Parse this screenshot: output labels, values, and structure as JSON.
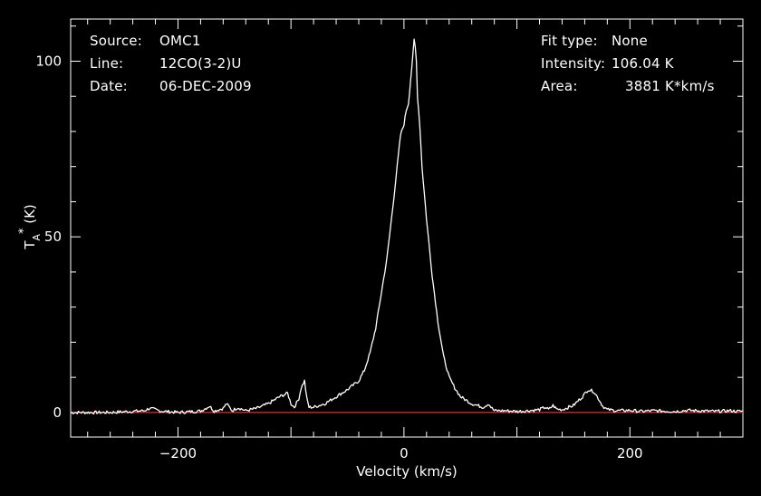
{
  "header": {
    "source_label": "Source:",
    "source_value": "OMC1",
    "line_label": "Line:",
    "line_value": "12CO(3-2)U",
    "date_label": "Date:",
    "date_value": "06-DEC-2009",
    "fit_label": "Fit type:",
    "fit_value": "None",
    "intensity_label": "Intensity:",
    "intensity_value": "106.04 K",
    "area_label": "Area:",
    "area_value": "3881 K*km/s"
  },
  "colors": {
    "background": "#000000",
    "axes": "#ffffff",
    "spectrum": "#ffffff",
    "baseline": "#e83030"
  },
  "chart_data": {
    "type": "line",
    "xlabel": "Velocity (km/s)",
    "ylabel": "T_A^* (K)",
    "xlim": [
      -295,
      300
    ],
    "ylim": [
      -7,
      112
    ],
    "xticks": [
      -200,
      0,
      200
    ],
    "yticks": [
      0,
      50,
      100
    ],
    "grid": false,
    "baseline_value": 0,
    "series": [
      {
        "x": [
          -295,
          -260,
          -230,
          -225,
          -215,
          -200,
          -180,
          -172,
          -168,
          -160,
          -157,
          -152,
          -147,
          -140,
          -130,
          -120,
          -110,
          -103,
          -100,
          -97,
          -93,
          -91,
          -88,
          -86,
          -84,
          -80,
          -70,
          -60,
          -50,
          -40,
          -35,
          -30,
          -25,
          -20,
          -15,
          -10,
          -6,
          -3,
          0,
          2,
          4,
          6,
          8,
          9,
          10,
          11,
          12,
          14,
          16,
          20,
          25,
          30,
          35,
          40,
          45,
          50,
          60,
          70,
          75,
          77,
          80,
          90,
          100,
          110,
          120,
          125,
          128,
          132,
          135,
          140,
          150,
          158,
          163,
          168,
          172,
          176,
          180,
          190,
          200,
          210,
          220,
          240,
          250,
          260,
          275,
          290,
          295,
          300
        ],
        "y": [
          0,
          0,
          0.5,
          1.2,
          0.4,
          0,
          0.4,
          1.8,
          0.4,
          1.2,
          2.5,
          0.5,
          1.4,
          0.5,
          1.2,
          2.5,
          4.5,
          5.5,
          2.5,
          1.5,
          4,
          7,
          9,
          4,
          1.5,
          1.5,
          2.5,
          4.5,
          6.5,
          9,
          12,
          17,
          24,
          34,
          44,
          58,
          70,
          79,
          82,
          86,
          88,
          95,
          102,
          106,
          104,
          100,
          90,
          82,
          70,
          55,
          39,
          26,
          16,
          10,
          7,
          4.5,
          2.5,
          1.5,
          2.5,
          1.5,
          0.5,
          0.5,
          0.3,
          0.5,
          0.8,
          1.5,
          0.8,
          2,
          1,
          0.8,
          2,
          4.5,
          6.5,
          6,
          4,
          1.8,
          0.8,
          0.5,
          0.6,
          0.3,
          0.5,
          0.3,
          0.6,
          0.5,
          0.3,
          0.5,
          0.3,
          0.4
        ]
      }
    ]
  }
}
